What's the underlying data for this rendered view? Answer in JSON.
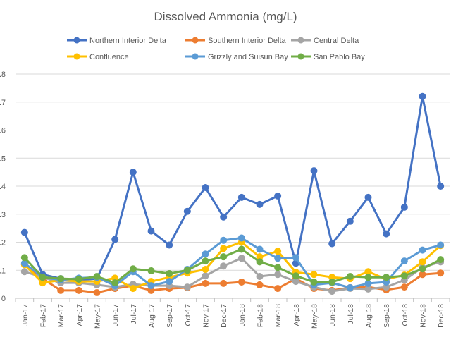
{
  "chart_data": {
    "type": "line",
    "title": "Dissolved Ammonia (mg/L)",
    "xlabel": "",
    "ylabel": "",
    "ylim": [
      0,
      0.8
    ],
    "yticks": [
      0,
      0.1,
      0.2,
      0.3,
      0.4,
      0.5,
      0.6,
      0.7,
      0.8
    ],
    "ytick_labels": [
      "0",
      ".1",
      ".2",
      ".3",
      ".4",
      ".5",
      ".6",
      ".7",
      ".8"
    ],
    "grid": "horizontal",
    "legend_position": "top",
    "categories": [
      "Jan-17",
      "Feb-17",
      "Mar-17",
      "Apr-17",
      "May-17",
      "Jun-17",
      "Jul-17",
      "Aug-17",
      "Sep-17",
      "Oct-17",
      "Nov-17",
      "Dec-17",
      "Jan-18",
      "Feb-18",
      "Mar-18",
      "Apr-18",
      "May-18",
      "Jun-18",
      "Jul-18",
      "Aug-18",
      "Sep-18",
      "Oct-18",
      "Nov-18",
      "Dec-18"
    ],
    "series": [
      {
        "name": "Northern Interior Delta",
        "color": "#4472C4",
        "values": [
          0.235,
          0.085,
          0.07,
          0.065,
          0.07,
          0.21,
          0.45,
          0.24,
          0.19,
          0.31,
          0.395,
          0.29,
          0.36,
          0.335,
          0.365,
          0.125,
          0.455,
          0.195,
          0.275,
          0.36,
          0.23,
          0.325,
          0.72,
          0.4
        ]
      },
      {
        "name": "Southern Interior Delta",
        "color": "#ED7D31",
        "values": [
          0.12,
          0.07,
          0.028,
          0.028,
          0.02,
          0.035,
          0.045,
          0.028,
          0.035,
          0.038,
          0.053,
          0.053,
          0.058,
          0.048,
          0.035,
          0.07,
          0.035,
          0.028,
          0.038,
          0.04,
          0.03,
          0.04,
          0.085,
          0.09
        ]
      },
      {
        "name": "Central Delta",
        "color": "#A5A5A5",
        "values": [
          0.095,
          0.075,
          0.055,
          0.055,
          0.048,
          0.04,
          0.05,
          0.045,
          0.045,
          0.04,
          0.08,
          0.115,
          0.143,
          0.078,
          0.085,
          0.06,
          0.04,
          0.025,
          0.035,
          0.033,
          0.04,
          0.065,
          0.11,
          0.13
        ]
      },
      {
        "name": "Confluence",
        "color": "#FFC000",
        "values": [
          0.12,
          0.055,
          0.065,
          0.06,
          0.06,
          0.072,
          0.035,
          0.06,
          0.075,
          0.09,
          0.103,
          0.178,
          0.2,
          0.148,
          0.168,
          0.093,
          0.085,
          0.075,
          0.07,
          0.095,
          0.068,
          0.083,
          0.13,
          0.188
        ]
      },
      {
        "name": "Grizzly and Suisun Bay",
        "color": "#5B9BD5",
        "values": [
          0.125,
          0.075,
          0.065,
          0.072,
          0.075,
          0.045,
          0.095,
          0.045,
          0.06,
          0.103,
          0.158,
          0.207,
          0.215,
          0.175,
          0.143,
          0.145,
          0.048,
          0.055,
          0.038,
          0.053,
          0.058,
          0.133,
          0.172,
          0.19
        ]
      },
      {
        "name": "San Pablo Bay",
        "color": "#70AD47",
        "values": [
          0.145,
          0.075,
          0.07,
          0.068,
          0.078,
          0.055,
          0.105,
          0.098,
          0.088,
          0.1,
          0.133,
          0.148,
          0.175,
          0.13,
          0.11,
          0.08,
          0.058,
          0.058,
          0.078,
          0.075,
          0.075,
          0.08,
          0.105,
          0.138
        ]
      }
    ]
  }
}
